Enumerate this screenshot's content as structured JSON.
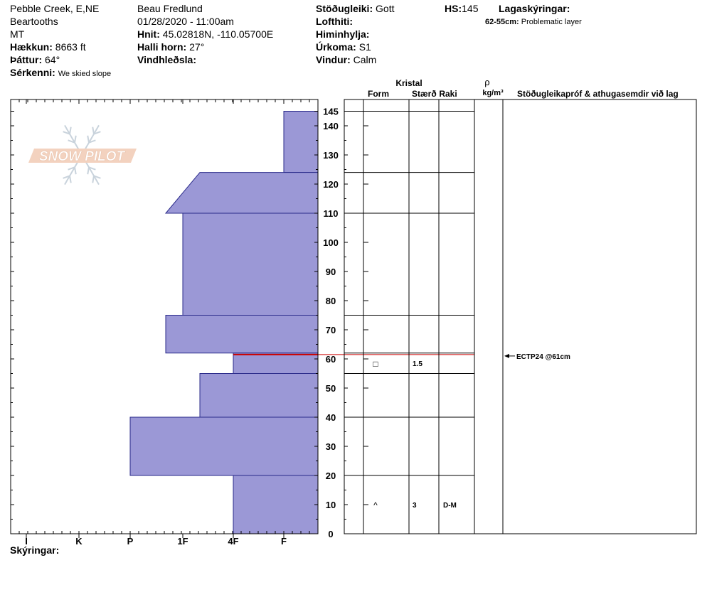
{
  "header": {
    "location_line1": "Pebble Creek, E,NE",
    "location_line2": "Beartooths",
    "location_line3": "MT",
    "elevation_label": "Hækkun:",
    "elevation_value": "8663 ft",
    "aspect_label": "Þáttur:",
    "aspect_value": "64°",
    "notes_label": "Sérkenni:",
    "notes_value": "We skied slope",
    "observer": "Beau  Fredlund",
    "datetime": "01/28/2020 - 11:00am",
    "coords_label": "Hnit:",
    "coords_value": "45.02818N, -110.05700E",
    "slope_label": "Halli horn:",
    "slope_value": "27°",
    "wind_loading_label": "Vindhleðsla:",
    "stability_label": "Stöðugleiki:",
    "stability_value": "Gott",
    "air_temp_label": "Lofthiti:",
    "sky_label": "Himinhylja:",
    "precip_label": "Úrkoma:",
    "precip_value": "S1",
    "wind_label": "Vindur:",
    "wind_value": "Calm",
    "hs_label": "HS:",
    "hs_value": "145",
    "layer_notes_label": "Lagaskýringar:",
    "layer_note_range": "62-55cm:",
    "layer_note_text": "Problematic layer",
    "legend_label": "Skýringar:"
  },
  "logo_text": "SNOW PILOT",
  "table_headers": {
    "crystal": "Kristal",
    "form": "Form",
    "size": "Stærð",
    "moisture": "Raki",
    "rho": "ρ",
    "density_unit": "kg/m³",
    "comments": "Stöðugleikapróf & athugasemdir við lag"
  },
  "chart_data": {
    "type": "snow-profile",
    "y_axis": {
      "min": 0,
      "max": 145,
      "ticks": [
        0,
        10,
        20,
        30,
        40,
        50,
        60,
        70,
        80,
        90,
        100,
        110,
        120,
        130,
        140,
        145
      ]
    },
    "hardness_scale": [
      "I",
      "K",
      "P",
      "1F",
      "4F",
      "F"
    ],
    "hardness_layers": [
      {
        "top": 145,
        "bottom": 124,
        "hardness_top": "F",
        "hardness_bottom": "F"
      },
      {
        "top": 124,
        "bottom": 110,
        "hardness_top": "1F+",
        "hardness_bottom": "1F-"
      },
      {
        "top": 110,
        "bottom": 75,
        "hardness_top": "1F",
        "hardness_bottom": "1F"
      },
      {
        "top": 75,
        "bottom": 62,
        "hardness_top": "1F-",
        "hardness_bottom": "1F-"
      },
      {
        "top": 62,
        "bottom": 55,
        "hardness_top": "4F",
        "hardness_bottom": "4F"
      },
      {
        "top": 55,
        "bottom": 40,
        "hardness_top": "1F+",
        "hardness_bottom": "1F+"
      },
      {
        "top": 40,
        "bottom": 20,
        "hardness_top": "P",
        "hardness_bottom": "P"
      },
      {
        "top": 20,
        "bottom": 0,
        "hardness_top": "4F",
        "hardness_bottom": "4F"
      }
    ],
    "highlight_layer_cm": 61.5,
    "layer_boundaries": [
      145,
      124,
      110,
      75,
      62,
      55,
      40,
      20,
      0
    ],
    "crystal_rows": [
      {
        "mid": 58.5,
        "form_symbol": "□",
        "size": "1.5",
        "moisture": ""
      },
      {
        "mid": 10,
        "form_symbol": "^",
        "size": "3",
        "moisture": "D-M"
      }
    ],
    "tests": [
      {
        "depth": 61,
        "text": "ECTP24 @61cm"
      }
    ]
  }
}
